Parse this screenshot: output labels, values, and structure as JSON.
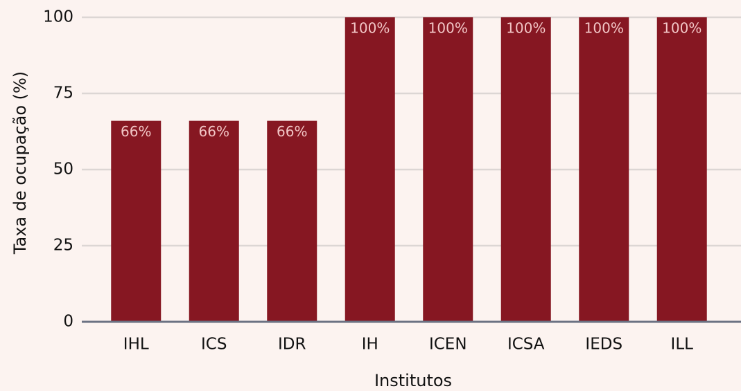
{
  "chart_data": {
    "type": "bar",
    "xlabel": "Institutos",
    "ylabel": "Taxa de ocupação (%)",
    "categories": [
      "IHL",
      "ICS",
      "IDR",
      "IH",
      "ICEN",
      "ICSA",
      "IEDS",
      "ILL"
    ],
    "values": [
      66,
      66,
      66,
      100,
      100,
      100,
      100,
      100
    ],
    "value_labels": [
      "66%",
      "66%",
      "66%",
      "100%",
      "100%",
      "100%",
      "100%",
      "100%"
    ],
    "color": "#861722",
    "ylim": [
      0,
      100
    ],
    "yticks": [
      0,
      25,
      50,
      75,
      100
    ],
    "grid": true
  }
}
